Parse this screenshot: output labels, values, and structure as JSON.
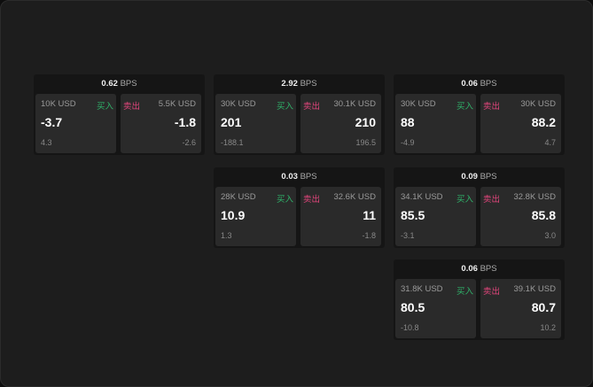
{
  "unit": "BPS",
  "buy_label": "买入",
  "sell_label": "卖出",
  "colors": {
    "buy": "#2fb26a",
    "sell": "#e0457b"
  },
  "quotes": [
    {
      "spread": "0.62",
      "bid": {
        "size": "10K USD",
        "price": "-3.7",
        "change": "4.3"
      },
      "ask": {
        "size": "5.5K USD",
        "price": "-1.8",
        "change": "-2.6"
      }
    },
    {
      "spread": "2.92",
      "bid": {
        "size": "30K USD",
        "price": "201",
        "change": "-188.1"
      },
      "ask": {
        "size": "30.1K USD",
        "price": "210",
        "change": "196.5"
      }
    },
    {
      "spread": "0.06",
      "bid": {
        "size": "30K USD",
        "price": "88",
        "change": "-4.9"
      },
      "ask": {
        "size": "30K USD",
        "price": "88.2",
        "change": "4.7"
      }
    },
    {
      "spread": "0.03",
      "bid": {
        "size": "28K USD",
        "price": "10.9",
        "change": "1.3"
      },
      "ask": {
        "size": "32.6K USD",
        "price": "11",
        "change": "-1.8"
      }
    },
    {
      "spread": "0.09",
      "bid": {
        "size": "34.1K USD",
        "price": "85.5",
        "change": "-3.1"
      },
      "ask": {
        "size": "32.8K USD",
        "price": "85.8",
        "change": "3.0"
      }
    },
    {
      "spread": "0.06",
      "bid": {
        "size": "31.8K USD",
        "price": "80.5",
        "change": "-10.8"
      },
      "ask": {
        "size": "39.1K USD",
        "price": "80.7",
        "change": "10.2"
      }
    }
  ]
}
